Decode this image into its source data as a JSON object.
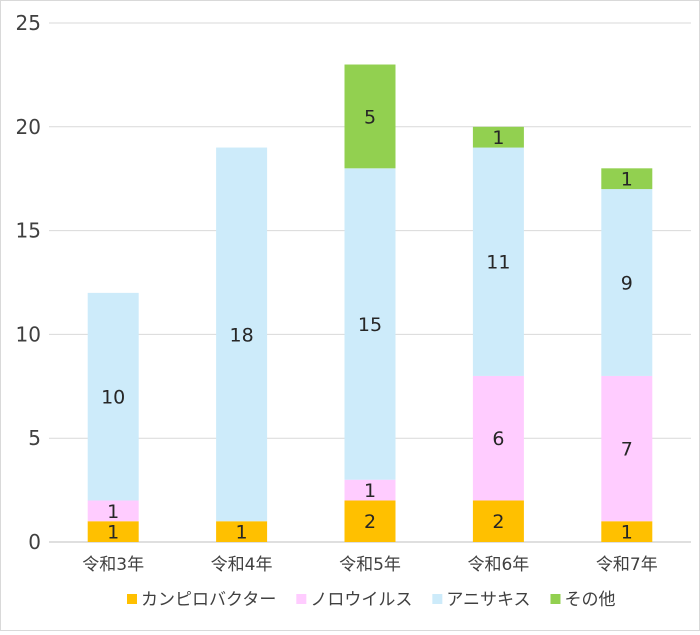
{
  "chart_data": {
    "type": "bar",
    "stacked": true,
    "categories": [
      "令和3年",
      "令和4年",
      "令和5年",
      "令和6年",
      "令和7年"
    ],
    "series": [
      {
        "name": "カンピロバクター",
        "color": "#ffc000",
        "values": [
          1,
          1,
          2,
          2,
          1
        ]
      },
      {
        "name": "ノロウイルス",
        "color": "#ffccff",
        "values": [
          1,
          0,
          1,
          6,
          7
        ]
      },
      {
        "name": "アニサキス",
        "color": "#cdebfa",
        "values": [
          10,
          18,
          15,
          11,
          9
        ]
      },
      {
        "name": "その他",
        "color": "#92d050",
        "values": [
          0,
          0,
          5,
          1,
          1
        ]
      }
    ],
    "ylim": [
      0,
      25
    ],
    "yticks": [
      0,
      5,
      10,
      15,
      20,
      25
    ],
    "grid": true,
    "legend_position": "bottom",
    "data_labels": true
  }
}
